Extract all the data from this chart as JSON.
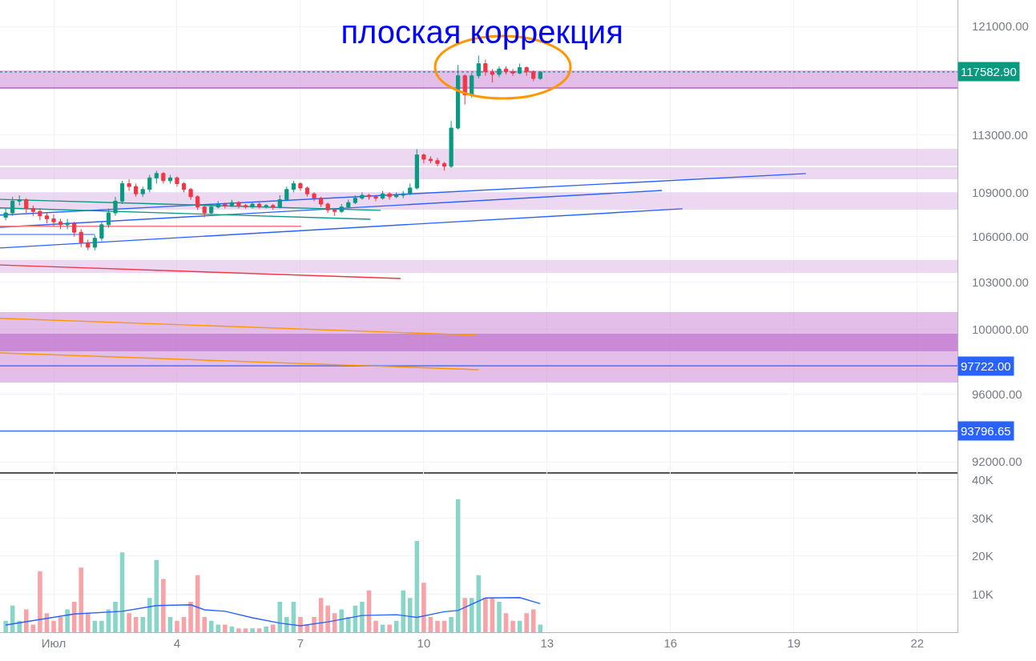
{
  "chart_data": [
    {
      "type": "candlestick",
      "title": "плоская коррекция",
      "log": true,
      "grid": true,
      "tick_labels": "y",
      "xlim": [
        "--06-29T16:40",
        "--07-22T23:30"
      ],
      "xticks": [
        {
          "value": "--07-01",
          "label": null
        },
        {
          "value": "--07-04",
          "label": null
        },
        {
          "value": "--07-07",
          "label": null
        },
        {
          "value": "--07-10",
          "label": null
        },
        {
          "value": "--07-13",
          "label": null
        },
        {
          "value": "--07-16",
          "label": null
        },
        {
          "value": "--07-19",
          "label": null
        },
        {
          "value": "--07-22",
          "label": null
        }
      ],
      "ylim": [
        91400,
        123030
      ],
      "yticks": [
        {
          "value": 92000,
          "label": "92000.00"
        },
        {
          "value": 96000,
          "label": "96000.00"
        },
        {
          "value": 100000,
          "label": "100000.00"
        },
        {
          "value": 103000,
          "label": "103000.00"
        },
        {
          "value": 106000,
          "label": "106000.00"
        },
        {
          "value": 109000,
          "label": "109000.00"
        },
        {
          "value": 113000,
          "label": "113000.00"
        },
        {
          "value": 121000,
          "label": "121000.00"
        }
      ],
      "x": [
        "--06-29T20:00",
        "--06-30T00:00",
        "--06-30T04:00",
        "--06-30T08:00",
        "--06-30T12:00",
        "--06-30T16:00",
        "--06-30T20:00",
        "--07-01T00:00",
        "--07-01T04:00",
        "--07-01T08:00",
        "--07-01T12:00",
        "--07-01T16:00",
        "--07-01T20:00",
        "--07-02T00:00",
        "--07-02T04:00",
        "--07-02T08:00",
        "--07-02T12:00",
        "--07-02T16:00",
        "--07-02T20:00",
        "--07-03T00:00",
        "--07-03T04:00",
        "--07-03T08:00",
        "--07-03T12:00",
        "--07-03T16:00",
        "--07-03T20:00",
        "--07-04T00:00",
        "--07-04T04:00",
        "--07-04T08:00",
        "--07-04T12:00",
        "--07-04T16:00",
        "--07-04T20:00",
        "--07-05T00:00",
        "--07-05T04:00",
        "--07-05T08:00",
        "--07-05T12:00",
        "--07-05T16:00",
        "--07-05T20:00",
        "--07-06T00:00",
        "--07-06T04:00",
        "--07-06T08:00",
        "--07-06T12:00",
        "--07-06T16:00",
        "--07-06T20:00",
        "--07-07T00:00",
        "--07-07T04:00",
        "--07-07T08:00",
        "--07-07T12:00",
        "--07-07T16:00",
        "--07-07T20:00",
        "--07-08T00:00",
        "--07-08T04:00",
        "--07-08T08:00",
        "--07-08T12:00",
        "--07-08T16:00",
        "--07-08T20:00",
        "--07-09T00:00",
        "--07-09T04:00",
        "--07-09T08:00",
        "--07-09T12:00",
        "--07-09T16:00",
        "--07-09T20:00",
        "--07-10T00:00",
        "--07-10T04:00",
        "--07-10T08:00",
        "--07-10T12:00",
        "--07-10T16:00",
        "--07-10T20:00",
        "--07-11T00:00",
        "--07-11T04:00",
        "--07-11T08:00",
        "--07-11T12:00",
        "--07-11T16:00",
        "--07-11T20:00",
        "--07-12T00:00",
        "--07-12T04:00",
        "--07-12T08:00",
        "--07-12T12:00",
        "--07-12T16:00",
        "--07-12T20:00"
      ],
      "ohlc": [
        [
          107300,
          107900,
          107100,
          107600
        ],
        [
          107600,
          108700,
          107400,
          108400
        ],
        [
          108400,
          108800,
          108100,
          108500
        ],
        [
          108500,
          108600,
          107600,
          107900
        ],
        [
          107900,
          108100,
          107400,
          107700
        ],
        [
          107700,
          107900,
          107100,
          107400
        ],
        [
          107400,
          107600,
          106900,
          107200
        ],
        [
          107200,
          107500,
          106700,
          107000
        ],
        [
          107000,
          107200,
          106500,
          106800
        ],
        [
          106800,
          107200,
          106500,
          106900
        ],
        [
          106900,
          107000,
          106000,
          106300
        ],
        [
          106300,
          106500,
          105300,
          105600
        ],
        [
          105600,
          105800,
          105100,
          105300
        ],
        [
          105300,
          106100,
          105100,
          105900
        ],
        [
          105900,
          107000,
          105700,
          106800
        ],
        [
          106800,
          107900,
          106600,
          107600
        ],
        [
          107600,
          108700,
          107400,
          108400
        ],
        [
          108400,
          109800,
          108200,
          109600
        ],
        [
          109600,
          109900,
          109100,
          109400
        ],
        [
          109400,
          109600,
          108700,
          108900
        ],
        [
          108900,
          109400,
          108700,
          109200
        ],
        [
          109200,
          110200,
          109000,
          110000
        ],
        [
          110000,
          110500,
          109600,
          110300
        ],
        [
          110300,
          110400,
          109600,
          109800
        ],
        [
          109800,
          110200,
          109600,
          110000
        ],
        [
          110000,
          110100,
          109400,
          109600
        ],
        [
          109600,
          109700,
          109000,
          109200
        ],
        [
          109200,
          109300,
          108500,
          108700
        ],
        [
          108700,
          108800,
          107800,
          108000
        ],
        [
          108000,
          108100,
          107300,
          107600
        ],
        [
          107600,
          108200,
          107500,
          108000
        ],
        [
          108000,
          108400,
          107900,
          108200
        ],
        [
          108200,
          108300,
          107900,
          108100
        ],
        [
          108100,
          108500,
          108000,
          108300
        ],
        [
          108300,
          108400,
          107900,
          108100
        ],
        [
          108100,
          108200,
          107900,
          108000
        ],
        [
          108000,
          108300,
          107900,
          108200
        ],
        [
          108200,
          108300,
          107900,
          108000
        ],
        [
          108000,
          108200,
          107900,
          108100
        ],
        [
          108100,
          108200,
          107800,
          108000
        ],
        [
          108000,
          108800,
          107900,
          108500
        ],
        [
          108500,
          109400,
          108400,
          109200
        ],
        [
          109200,
          109800,
          109000,
          109600
        ],
        [
          109600,
          109700,
          109100,
          109300
        ],
        [
          109300,
          109400,
          108700,
          108900
        ],
        [
          108900,
          109000,
          108400,
          108600
        ],
        [
          108600,
          108700,
          108000,
          108200
        ],
        [
          108200,
          108300,
          107600,
          107800
        ],
        [
          107800,
          107900,
          107400,
          107700
        ],
        [
          107700,
          108200,
          107600,
          108000
        ],
        [
          108000,
          108500,
          107900,
          108300
        ],
        [
          108300,
          108800,
          108200,
          108600
        ],
        [
          108600,
          109000,
          108500,
          108800
        ],
        [
          108800,
          108900,
          108500,
          108700
        ],
        [
          108700,
          108800,
          108400,
          108600
        ],
        [
          108600,
          109100,
          108500,
          108900
        ],
        [
          108900,
          109000,
          108500,
          108700
        ],
        [
          108700,
          109000,
          108600,
          108800
        ],
        [
          108800,
          109100,
          108600,
          108900
        ],
        [
          108900,
          109600,
          108800,
          109300
        ],
        [
          109300,
          112000,
          109200,
          111600
        ],
        [
          111600,
          111700,
          111000,
          111300
        ],
        [
          111300,
          111500,
          111000,
          111200
        ],
        [
          111200,
          111400,
          110800,
          111000
        ],
        [
          111000,
          111100,
          110500,
          110800
        ],
        [
          110800,
          114000,
          110700,
          113500
        ],
        [
          113500,
          118100,
          113400,
          117300
        ],
        [
          117300,
          117400,
          115200,
          115900
        ],
        [
          115900,
          117500,
          115700,
          117300
        ],
        [
          117300,
          118800,
          117100,
          118200
        ],
        [
          118200,
          118500,
          117300,
          117600
        ],
        [
          117600,
          117800,
          116800,
          117400
        ],
        [
          117400,
          118000,
          117200,
          117800
        ],
        [
          117800,
          118000,
          117400,
          117600
        ],
        [
          117600,
          117800,
          117300,
          117500
        ],
        [
          117500,
          118200,
          117400,
          117900
        ],
        [
          117900,
          118000,
          117300,
          117600
        ],
        [
          117600,
          117700,
          116900,
          117100
        ],
        [
          117100,
          117600,
          117000,
          117582.9
        ]
      ],
      "series": [
        {
          "type": "line",
          "color": "#2962ff",
          "x": [
            "--06-29T16:40",
            "--07-19T07:00"
          ],
          "values": [
            107450,
            110300
          ]
        },
        {
          "type": "line",
          "color": "#2962ff",
          "x": [
            "--06-29T16:40",
            "--07-15T19:00"
          ],
          "values": [
            106630,
            109130
          ]
        },
        {
          "type": "line",
          "color": "#2962ff",
          "x": [
            "--06-29T16:40",
            "--07-16T07:00"
          ],
          "values": [
            105250,
            107880
          ]
        },
        {
          "type": "line",
          "color": "#6f92ff",
          "x": [
            "--06-29T16:40",
            "--07-02T00:00"
          ],
          "values": [
            106150,
            106150
          ]
        },
        {
          "type": "line",
          "color": "#f77c80",
          "x": [
            "--06-29T16:40",
            "--07-07T00:30"
          ],
          "values": [
            106700,
            106700
          ]
        },
        {
          "type": "line",
          "color": "#f23645",
          "x": [
            "--06-29T16:40",
            "--07-09T10:30"
          ],
          "values": [
            104130,
            103250
          ]
        },
        {
          "type": "line",
          "color": "#089981",
          "x": [
            "--06-29T16:40",
            "--07-08T22:50"
          ],
          "values": [
            108520,
            107770
          ]
        },
        {
          "type": "line",
          "color": "#089981",
          "x": [
            "--06-29T16:40",
            "--07-08T16:50"
          ],
          "values": [
            107940,
            107170
          ]
        },
        {
          "type": "line",
          "color": "#ff9800",
          "x": [
            "--06-29T16:40",
            "--07-11T06:30"
          ],
          "values": [
            100690,
            99630
          ]
        },
        {
          "type": "line",
          "color": "#ff9800",
          "x": [
            "--06-29T16:40",
            "--07-11T08:10"
          ],
          "values": [
            98520,
            97490
          ]
        }
      ],
      "bands": [
        {
          "axis": "y",
          "from": 116400,
          "to": 117700,
          "color": "#ce93d8"
        },
        {
          "axis": "y",
          "from": 110850,
          "to": 112030,
          "color": "#e1bee7"
        },
        {
          "axis": "y",
          "from": 109900,
          "to": 110740,
          "color": "#e1bee7"
        },
        {
          "axis": "y",
          "from": 107820,
          "to": 109000,
          "color": "#e1bee7"
        },
        {
          "axis": "y",
          "from": 103610,
          "to": 104460,
          "color": "#e1bee7"
        },
        {
          "axis": "y",
          "from": 96700,
          "to": 101090,
          "color": "#ce93d8"
        },
        {
          "axis": "y",
          "from": 98620,
          "to": 99720,
          "color": "#ba68c8"
        }
      ],
      "ref_lines": [
        {
          "axis": "y",
          "value": 117582.9,
          "label": "117582.90",
          "color": "#089981",
          "line_style": "dotted"
        },
        {
          "axis": "y",
          "value": 116400,
          "color": "#9c27b0",
          "line_style": "solid"
        },
        {
          "axis": "y",
          "value": 97722,
          "label": "97722.00",
          "color": "#2962ff",
          "line_style": "solid"
        },
        {
          "axis": "y",
          "value": 93796.65,
          "label": "93796.65",
          "color": "#2962ff",
          "line_style": "solid"
        }
      ]
    },
    {
      "type": "bar",
      "grid": true,
      "xlim": [
        "--06-29T16:40",
        "--07-22T23:30"
      ],
      "xticks": [
        {
          "value": "--07-01",
          "label": "Июл"
        },
        {
          "value": "--07-04",
          "label": "4"
        },
        {
          "value": "--07-07",
          "label": "7"
        },
        {
          "value": "--07-10",
          "label": "10"
        },
        {
          "value": "--07-13",
          "label": "13"
        },
        {
          "value": "--07-16",
          "label": "16"
        },
        {
          "value": "--07-19",
          "label": "19"
        },
        {
          "value": "--07-22",
          "label": "22"
        }
      ],
      "ylim": [
        0,
        42100
      ],
      "yticks": [
        {
          "value": 10000,
          "label": "10K"
        },
        {
          "value": 20000,
          "label": "20K"
        },
        {
          "value": 30000,
          "label": "30K"
        },
        {
          "value": 40000,
          "label": "40K"
        }
      ],
      "x": [
        "--06-29T20:00",
        "--06-30T00:00",
        "--06-30T04:00",
        "--06-30T08:00",
        "--06-30T12:00",
        "--06-30T16:00",
        "--06-30T20:00",
        "--07-01T00:00",
        "--07-01T04:00",
        "--07-01T08:00",
        "--07-01T12:00",
        "--07-01T16:00",
        "--07-01T20:00",
        "--07-02T00:00",
        "--07-02T04:00",
        "--07-02T08:00",
        "--07-02T12:00",
        "--07-02T16:00",
        "--07-02T20:00",
        "--07-03T00:00",
        "--07-03T04:00",
        "--07-03T08:00",
        "--07-03T12:00",
        "--07-03T16:00",
        "--07-03T20:00",
        "--07-04T00:00",
        "--07-04T04:00",
        "--07-04T08:00",
        "--07-04T12:00",
        "--07-04T16:00",
        "--07-04T20:00",
        "--07-05T00:00",
        "--07-05T04:00",
        "--07-05T08:00",
        "--07-05T12:00",
        "--07-05T16:00",
        "--07-05T20:00",
        "--07-06T00:00",
        "--07-06T04:00",
        "--07-06T08:00",
        "--07-06T12:00",
        "--07-06T16:00",
        "--07-06T20:00",
        "--07-07T00:00",
        "--07-07T04:00",
        "--07-07T08:00",
        "--07-07T12:00",
        "--07-07T16:00",
        "--07-07T20:00",
        "--07-08T00:00",
        "--07-08T04:00",
        "--07-08T08:00",
        "--07-08T12:00",
        "--07-08T16:00",
        "--07-08T20:00",
        "--07-09T00:00",
        "--07-09T04:00",
        "--07-09T08:00",
        "--07-09T12:00",
        "--07-09T16:00",
        "--07-09T20:00",
        "--07-10T00:00",
        "--07-10T04:00",
        "--07-10T08:00",
        "--07-10T12:00",
        "--07-10T16:00",
        "--07-10T20:00",
        "--07-11T00:00",
        "--07-11T04:00",
        "--07-11T08:00",
        "--07-11T12:00",
        "--07-11T16:00",
        "--07-11T20:00",
        "--07-12T00:00",
        "--07-12T04:00",
        "--07-12T08:00",
        "--07-12T12:00",
        "--07-12T16:00",
        "--07-12T20:00"
      ],
      "series": [
        {
          "values": [
            3000,
            7000,
            3000,
            6000,
            2000,
            16000,
            5000,
            3000,
            4000,
            6000,
            8000,
            17000,
            5000,
            3000,
            3000,
            6000,
            8000,
            21000,
            5000,
            4000,
            4000,
            9000,
            19000,
            14000,
            4000,
            3000,
            4000,
            8000,
            15000,
            4000,
            3000,
            2000,
            2000,
            1500,
            1000,
            1000,
            1000,
            1000,
            1500,
            2000,
            8000,
            4000,
            8000,
            4000,
            2000,
            4000,
            9000,
            7000,
            5000,
            6000,
            4000,
            7000,
            8000,
            11000,
            3000,
            2000,
            2000,
            3000,
            11000,
            9000,
            24000,
            13000,
            4000,
            3000,
            3000,
            4000,
            35000,
            9000,
            9000,
            15000,
            9000,
            9000,
            8000,
            5000,
            3000,
            3000,
            5000,
            6000,
            2000
          ],
          "colors": [
            "#89d6c8",
            "#89d6c8",
            "#89d6c8",
            "#f7a3a7",
            "#f7a3a7",
            "#f7a3a7",
            "#f7a3a7",
            "#f7a3a7",
            "#f7a3a7",
            "#89d6c8",
            "#f7a3a7",
            "#f7a3a7",
            "#f7a3a7",
            "#89d6c8",
            "#89d6c8",
            "#89d6c8",
            "#89d6c8",
            "#89d6c8",
            "#f7a3a7",
            "#f7a3a7",
            "#89d6c8",
            "#89d6c8",
            "#89d6c8",
            "#f7a3a7",
            "#89d6c8",
            "#f7a3a7",
            "#f7a3a7",
            "#f7a3a7",
            "#f7a3a7",
            "#f7a3a7",
            "#89d6c8",
            "#89d6c8",
            "#f7a3a7",
            "#89d6c8",
            "#f7a3a7",
            "#f7a3a7",
            "#89d6c8",
            "#f7a3a7",
            "#89d6c8",
            "#f7a3a7",
            "#89d6c8",
            "#89d6c8",
            "#89d6c8",
            "#f7a3a7",
            "#f7a3a7",
            "#f7a3a7",
            "#f7a3a7",
            "#f7a3a7",
            "#f7a3a7",
            "#89d6c8",
            "#89d6c8",
            "#89d6c8",
            "#89d6c8",
            "#f7a3a7",
            "#f7a3a7",
            "#89d6c8",
            "#f7a3a7",
            "#89d6c8",
            "#89d6c8",
            "#89d6c8",
            "#89d6c8",
            "#f7a3a7",
            "#f7a3a7",
            "#f7a3a7",
            "#f7a3a7",
            "#89d6c8",
            "#89d6c8",
            "#f7a3a7",
            "#89d6c8",
            "#89d6c8",
            "#f7a3a7",
            "#f7a3a7",
            "#89d6c8",
            "#f7a3a7",
            "#f7a3a7",
            "#89d6c8",
            "#f7a3a7",
            "#f7a3a7",
            "#89d6c8"
          ]
        },
        {
          "type": "line",
          "color": "#2962ff",
          "x": [
            "--06-29T20:00",
            "--07-01T12:00",
            "--07-02T16:00",
            "--07-03T12:00",
            "--07-04T08:00",
            "--07-04T16:00",
            "--07-05T04:00",
            "--07-05T20:00",
            "--07-06T12:00",
            "--07-07T00:00",
            "--07-07T16:00",
            "--07-08T12:00",
            "--07-09T08:00",
            "--07-09T20:00",
            "--07-10T12:00",
            "--07-10T20:00",
            "--07-11T12:00",
            "--07-12T08:00",
            "--07-12T20:00"
          ],
          "values": [
            1900,
            4800,
            5500,
            7000,
            7200,
            5900,
            5500,
            3800,
            2400,
            1700,
            2700,
            4400,
            4600,
            3900,
            5400,
            5700,
            9000,
            9100,
            7500
          ]
        }
      ]
    }
  ]
}
